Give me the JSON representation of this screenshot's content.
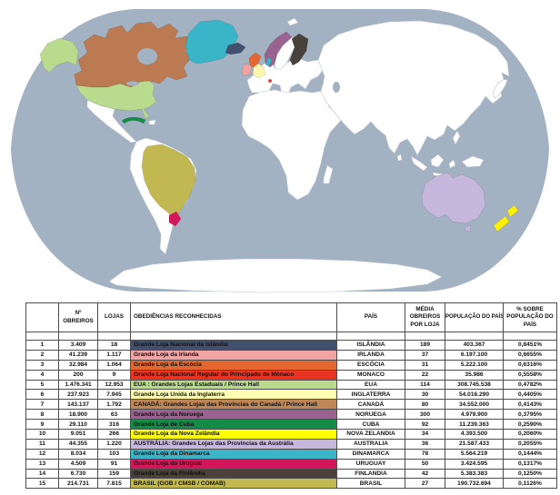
{
  "map": {
    "ocean_color": "#a3b2c2",
    "land_color": "#ffffff",
    "background_color": "#ffffff",
    "regions": [
      {
        "id": "canada",
        "label": "Canadá",
        "color": "#bc7a52"
      },
      {
        "id": "usa",
        "label": "EUA",
        "color": "#b9db8d"
      },
      {
        "id": "alaska",
        "label": "EUA (Alasca)",
        "color": "#b9db8d"
      },
      {
        "id": "greenland",
        "label": "Groenlândia (Dinamarca)",
        "color": "#3ab5c8"
      },
      {
        "id": "denmark",
        "label": "Dinamarca",
        "color": "#3ab5c8"
      },
      {
        "id": "iceland",
        "label": "Islândia",
        "color": "#42506e"
      },
      {
        "id": "ireland",
        "label": "Irlanda",
        "color": "#f2a3a4"
      },
      {
        "id": "scotland",
        "label": "Escócia",
        "color": "#e4672f"
      },
      {
        "id": "england",
        "label": "Inglaterra",
        "color": "#fdf4ad"
      },
      {
        "id": "norway",
        "label": "Noruega",
        "color": "#99628f"
      },
      {
        "id": "finland",
        "label": "Finlândia",
        "color": "#49413a"
      },
      {
        "id": "monaco",
        "label": "Mônaco",
        "color": "#e93323"
      },
      {
        "id": "cuba",
        "label": "Cuba",
        "color": "#128c46"
      },
      {
        "id": "brazil",
        "label": "Brasil",
        "color": "#c2b852"
      },
      {
        "id": "uruguay",
        "label": "Uruguai",
        "color": "#d4175a"
      },
      {
        "id": "australia",
        "label": "Austrália",
        "color": "#c6b7dc"
      },
      {
        "id": "tasmania",
        "label": "Austrália (Tasmânia)",
        "color": "#c6b7dc"
      },
      {
        "id": "new-zealand",
        "label": "Nova Zelândia",
        "color": "#ffef00"
      }
    ]
  },
  "table": {
    "headers": {
      "num": "",
      "obreiros": "Nº OBREIROS",
      "lojas": "LOJAS",
      "obediencias": "OBEDIÊNCIAS RECONHECIDAS",
      "pais": "PAÍS",
      "media": "MÉDIA OBREIROS POR LOJA",
      "populacao": "POPULAÇÃO DO PAÍS",
      "pct": "% SOBRE POPULAÇÃO DO PAÍS"
    },
    "rows": [
      {
        "num": "1",
        "obreiros": "3.409",
        "lojas": "18",
        "obediencia": "Grande Loja Nacional da Islândia",
        "color": "#42506e",
        "pais": "ISLÂNDIA",
        "media": "189",
        "populacao": "403.367",
        "pct": "0,8451%"
      },
      {
        "num": "2",
        "obreiros": "41.239",
        "lojas": "1.117",
        "obediencia": "Grande Loja da Irlanda",
        "color": "#f2a3a4",
        "pais": "IRLANDA",
        "media": "37",
        "populacao": "6.197.100",
        "pct": "0,6655%"
      },
      {
        "num": "3",
        "obreiros": "32.984",
        "lojas": "1.064",
        "obediencia": "Grande Loja da Escócia",
        "color": "#e4672f",
        "pais": "ESCÓCIA",
        "media": "31",
        "populacao": "5.222.100",
        "pct": "0,6316%"
      },
      {
        "num": "4",
        "obreiros": "200",
        "lojas": "9",
        "obediencia": "Grande Loja Nacional Regular do Principado de Mônaco",
        "color": "#e93323",
        "pais": "MONACO",
        "media": "22",
        "populacao": "35.986",
        "pct": "0,5558%"
      },
      {
        "num": "5",
        "obreiros": "1.476.341",
        "lojas": "12.953",
        "obediencia": "EUA : Grandes Lojas Estaduais / Prince Hall",
        "color": "#b7da8b",
        "pais": "EUA",
        "media": "114",
        "populacao": "308.745.538",
        "pct": "0,4782%"
      },
      {
        "num": "6",
        "obreiros": "237.923",
        "lojas": "7.945",
        "obediencia": "Grande Loja Unida da Inglaterra",
        "color": "#ffffb3",
        "pais": "INGLATERRA",
        "media": "30",
        "populacao": "54.016.290",
        "pct": "0,4405%"
      },
      {
        "num": "7",
        "obreiros": "143.137",
        "lojas": "1.792",
        "obediencia": "CANADÁ: Grandes Lojas das Províncias do Canadá / Prince Hall",
        "color": "#bf8656",
        "pais": "CANADÁ",
        "media": "80",
        "populacao": "34.552.000",
        "pct": "0,4143%"
      },
      {
        "num": "8",
        "obreiros": "18.900",
        "lojas": "63",
        "obediencia": "Grande Loja da Noruega",
        "color": "#99628f",
        "pais": "NORUEGA",
        "media": "300",
        "populacao": "4.979.900",
        "pct": "0,3795%"
      },
      {
        "num": "9",
        "obreiros": "29.110",
        "lojas": "316",
        "obediencia": "Grande Loja de Cuba",
        "color": "#128c46",
        "pais": "CUBA",
        "media": "92",
        "populacao": "11.239.363",
        "pct": "0,2590%"
      },
      {
        "num": "10",
        "obreiros": "9.051",
        "lojas": "266",
        "obediencia": "Grande Loja da Nova Zelândia",
        "color": "#ffff00",
        "pais": "NOVA ZELANDIA",
        "media": "34",
        "populacao": "4.393.500",
        "pct": "0,2060%"
      },
      {
        "num": "11",
        "obreiros": "44.355",
        "lojas": "1.220",
        "obediencia": "AUSTRÁLIA: Grandes Lojas das Províncias da Austrália",
        "color": "#c6b7dc",
        "pais": "AUSTRALIA",
        "media": "36",
        "populacao": "21.587.433",
        "pct": "0,2055%"
      },
      {
        "num": "12",
        "obreiros": "8.034",
        "lojas": "103",
        "obediencia": "Grande Loja da Dinamarca",
        "color": "#3ab5c8",
        "pais": "DINAMARCA",
        "media": "78",
        "populacao": "5.564.219",
        "pct": "0,1444%"
      },
      {
        "num": "13",
        "obreiros": "4.509",
        "lojas": "91",
        "obediencia": "Grande Loja do Uruguai",
        "color": "#d4175a",
        "pais": "URUGUAY",
        "media": "50",
        "populacao": "3.424.595",
        "pct": "0,1317%"
      },
      {
        "num": "14",
        "obreiros": "6.730",
        "lojas": "159",
        "obediencia": "Grande Loja da Finlândia",
        "color": "#49413a",
        "pais": "FINLANDIA",
        "media": "42",
        "populacao": "5.383.383",
        "pct": "0,1250%"
      },
      {
        "num": "15",
        "obreiros": "214.731",
        "lojas": "7.815",
        "obediencia": "BRASIL (GOB / CMSB / COMAB)",
        "color": "#c2b852",
        "pais": "BRASIL",
        "media": "27",
        "populacao": "190.732.694",
        "pct": "0,1126%"
      }
    ]
  }
}
